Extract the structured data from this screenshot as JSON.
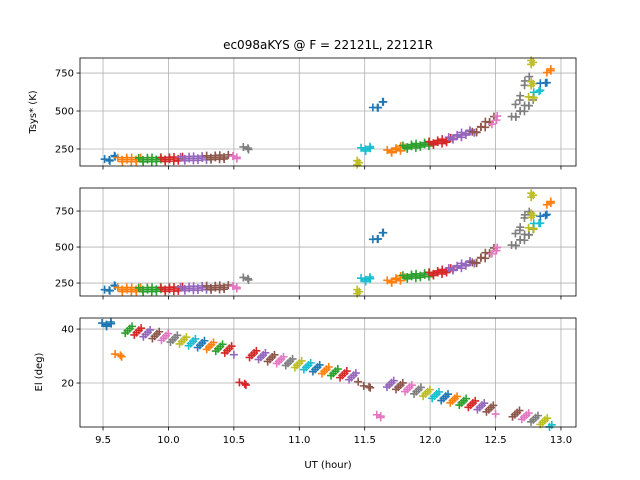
{
  "chart_data": [
    {
      "type": "scatter",
      "title": "ec098aKYS @ F = 22121L, 22121R",
      "ylabel": "Tsys* (K)",
      "xlim": [
        9.324,
        13.115
      ],
      "ylim": [
        138,
        849
      ],
      "yticks": [
        "250",
        "500",
        "750"
      ],
      "ytick_values": [
        250,
        500,
        750
      ],
      "grid": true,
      "marker": "+",
      "clusters": [
        [
          9.52,
          9.6,
          170,
          200,
          "#1f77b4"
        ],
        [
          9.62,
          9.78,
          180,
          180,
          "#ff7f0e"
        ],
        [
          9.78,
          9.95,
          178,
          182,
          "#2ca02c"
        ],
        [
          9.95,
          10.1,
          180,
          186,
          "#d62728"
        ],
        [
          10.1,
          10.3,
          185,
          192,
          "#9467bd"
        ],
        [
          10.3,
          10.45,
          192,
          198,
          "#8c564b"
        ],
        [
          10.5,
          10.53,
          190,
          200,
          "#e377c2"
        ],
        [
          10.58,
          10.62,
          250,
          260,
          "#7f7f7f"
        ],
        [
          11.57,
          11.65,
          510,
          560,
          "#1f77b4"
        ],
        [
          11.48,
          11.55,
          245,
          255,
          "#17becf"
        ],
        [
          11.45,
          11.45,
          160,
          160,
          "#bcbd22"
        ],
        [
          11.68,
          11.8,
          230,
          260,
          "#ff7f0e"
        ],
        [
          11.8,
          12.0,
          260,
          285,
          "#2ca02c"
        ],
        [
          12.0,
          12.15,
          285,
          310,
          "#d62728"
        ],
        [
          12.15,
          12.33,
          315,
          370,
          "#9467bd"
        ],
        [
          12.33,
          12.48,
          350,
          450,
          "#8c564b"
        ],
        [
          12.48,
          12.52,
          400,
          480,
          "#e377c2"
        ],
        [
          12.63,
          12.78,
          450,
          560,
          "#7f7f7f"
        ],
        [
          12.66,
          12.75,
          530,
          740,
          "#7f7f7f"
        ],
        [
          12.78,
          12.78,
          820,
          820,
          "#bcbd22"
        ],
        [
          12.78,
          12.78,
          680,
          680,
          "#bcbd22"
        ],
        [
          12.76,
          12.8,
          580,
          600,
          "#bcbd22"
        ],
        [
          12.8,
          12.85,
          610,
          650,
          "#17becf"
        ],
        [
          12.85,
          12.9,
          670,
          700,
          "#1f77b4"
        ],
        [
          12.9,
          12.93,
          740,
          790,
          "#ff7f0e"
        ]
      ]
    },
    {
      "type": "scatter",
      "title": "",
      "ylabel": "",
      "xlim": [
        9.324,
        13.115
      ],
      "ylim": [
        160,
        910
      ],
      "yticks": [
        "250",
        "500",
        "750"
      ],
      "ytick_values": [
        250,
        500,
        750
      ],
      "grid": true,
      "marker": "+",
      "clusters": [
        [
          9.52,
          9.6,
          190,
          230,
          "#1f77b4"
        ],
        [
          9.62,
          9.78,
          205,
          205,
          "#ff7f0e"
        ],
        [
          9.78,
          9.95,
          203,
          207,
          "#2ca02c"
        ],
        [
          9.95,
          10.1,
          205,
          210,
          "#d62728"
        ],
        [
          10.1,
          10.3,
          210,
          218,
          "#9467bd"
        ],
        [
          10.3,
          10.45,
          215,
          222,
          "#8c564b"
        ],
        [
          10.5,
          10.53,
          215,
          225,
          "#e377c2"
        ],
        [
          10.58,
          10.62,
          275,
          285,
          "#7f7f7f"
        ],
        [
          11.57,
          11.65,
          540,
          600,
          "#1f77b4"
        ],
        [
          11.48,
          11.55,
          270,
          280,
          "#17becf"
        ],
        [
          11.45,
          11.45,
          190,
          190,
          "#bcbd22"
        ],
        [
          11.68,
          11.8,
          255,
          290,
          "#ff7f0e"
        ],
        [
          11.8,
          12.0,
          290,
          310,
          "#2ca02c"
        ],
        [
          12.0,
          12.15,
          310,
          340,
          "#d62728"
        ],
        [
          12.15,
          12.33,
          340,
          400,
          "#9467bd"
        ],
        [
          12.33,
          12.48,
          380,
          480,
          "#8c564b"
        ],
        [
          12.48,
          12.52,
          440,
          510,
          "#e377c2"
        ],
        [
          12.63,
          12.78,
          500,
          610,
          "#7f7f7f"
        ],
        [
          12.66,
          12.75,
          580,
          760,
          "#7f7f7f"
        ],
        [
          12.78,
          12.78,
          860,
          860,
          "#bcbd22"
        ],
        [
          12.78,
          12.78,
          720,
          720,
          "#bcbd22"
        ],
        [
          12.76,
          12.8,
          620,
          640,
          "#bcbd22"
        ],
        [
          12.8,
          12.85,
          650,
          680,
          "#17becf"
        ],
        [
          12.85,
          12.9,
          700,
          740,
          "#1f77b4"
        ],
        [
          12.9,
          12.93,
          780,
          830,
          "#ff7f0e"
        ]
      ]
    },
    {
      "type": "scatter",
      "title": "",
      "ylabel": "El (deg)",
      "xlabel": "UT (hour)",
      "xlim": [
        9.324,
        13.115
      ],
      "ylim": [
        3.7,
        44.1
      ],
      "yticks": [
        "20",
        "40"
      ],
      "ytick_values": [
        20,
        40
      ],
      "grid": true,
      "marker": "+",
      "xticks": [
        "9.5",
        "10.0",
        "10.5",
        "11.0",
        "11.5",
        "12.0",
        "12.5",
        "13.0"
      ],
      "xtick_values": [
        9.5,
        10.0,
        10.5,
        11.0,
        11.5,
        12.0,
        12.5,
        13.0
      ],
      "clusters": [
        [
          9.5,
          9.57,
          41.5,
          42,
          "#1f77b4"
        ],
        [
          9.6,
          9.65,
          30,
          30.5,
          "#ff7f0e"
        ],
        [
          10.55,
          10.6,
          19.5,
          20,
          "#d62728"
        ],
        [
          11.5,
          11.55,
          18.2,
          19,
          "#8c564b"
        ],
        [
          11.6,
          11.63,
          7.5,
          8,
          "#e377c2"
        ]
      ],
      "bands": [
        [
          9.67,
          10.5,
          40,
          32,
          3
        ],
        [
          10.62,
          11.45,
          31,
          22,
          3
        ],
        [
          11.67,
          12.5,
          20,
          10,
          3
        ],
        [
          12.63,
          12.93,
          9,
          5,
          3
        ]
      ],
      "band_colors": [
        "#2ca02c",
        "#d62728",
        "#9467bd",
        "#8c564b",
        "#e377c2",
        "#7f7f7f",
        "#bcbd22",
        "#17becf",
        "#1f77b4",
        "#ff7f0e"
      ]
    }
  ]
}
